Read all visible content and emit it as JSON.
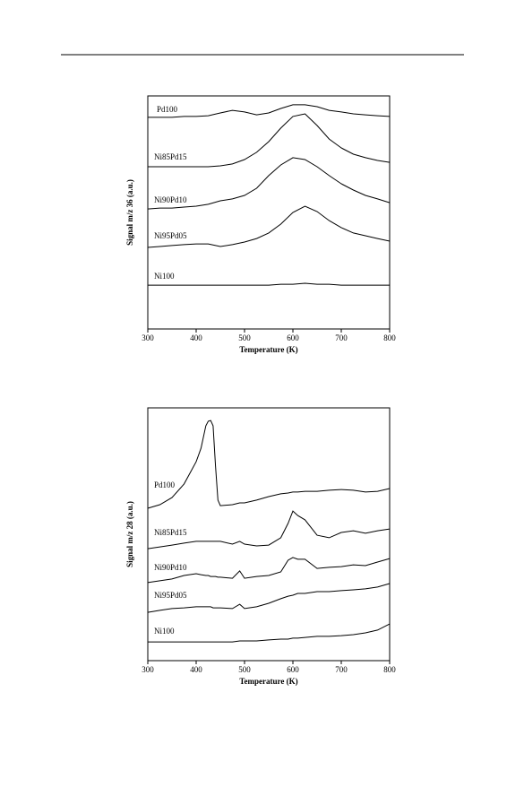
{
  "chart_data": [
    {
      "type": "line",
      "x_label": "Temperature (K)",
      "y_label": "Signal m/z 36 (a.u.)",
      "x": [
        300,
        325,
        350,
        375,
        400,
        425,
        450,
        475,
        500,
        525,
        550,
        575,
        600,
        625,
        650,
        675,
        700,
        725,
        750,
        775,
        800
      ],
      "xlim": [
        300,
        800
      ],
      "xticks": [
        300,
        400,
        500,
        600,
        700,
        800
      ],
      "ylim": [
        0,
        100
      ],
      "series": [
        {
          "name": "Pd100",
          "color": "#000000",
          "values": [
            90.8,
            90.8,
            90.8,
            91.2,
            91.2,
            91.5,
            92.7,
            93.8,
            93.1,
            91.9,
            92.7,
            94.6,
            96.2,
            96.2,
            95.4,
            93.8,
            93.1,
            92.3,
            91.9,
            91.5,
            91.2
          ]
        },
        {
          "name": "Ni85Pd15",
          "color": "#000000",
          "values": [
            69.6,
            69.6,
            69.6,
            69.6,
            69.6,
            69.6,
            70.0,
            70.8,
            72.7,
            75.8,
            80.4,
            86.2,
            91.2,
            92.3,
            87.3,
            81.5,
            77.7,
            75.0,
            73.5,
            72.3,
            71.5
          ]
        },
        {
          "name": "Ni90Pd10",
          "color": "#000000",
          "values": [
            51.5,
            51.9,
            51.9,
            52.3,
            52.7,
            53.5,
            55.0,
            55.8,
            57.3,
            60.4,
            65.8,
            70.4,
            73.5,
            72.7,
            69.6,
            65.8,
            62.3,
            59.6,
            57.3,
            55.8,
            54.2
          ]
        },
        {
          "name": "Ni95Pd05",
          "color": "#000000",
          "values": [
            35.0,
            35.4,
            35.8,
            36.2,
            36.5,
            36.5,
            35.4,
            36.2,
            37.3,
            38.8,
            41.2,
            45.0,
            50.0,
            52.7,
            50.4,
            46.5,
            43.5,
            41.2,
            40.0,
            38.8,
            37.7
          ]
        },
        {
          "name": "Ni100",
          "color": "#000000",
          "values": [
            18.8,
            18.8,
            18.8,
            18.8,
            18.8,
            18.8,
            18.8,
            18.8,
            18.8,
            18.8,
            18.8,
            19.2,
            19.2,
            19.6,
            19.2,
            19.2,
            18.8,
            18.8,
            18.8,
            18.8,
            18.8
          ]
        }
      ]
    },
    {
      "type": "line",
      "x_label": "Temperature (K)",
      "y_label": "Signal m/z 28 (a.u.)",
      "x": [
        300,
        325,
        350,
        375,
        400,
        410,
        420,
        425,
        430,
        435,
        440,
        445,
        450,
        475,
        490,
        500,
        525,
        550,
        575,
        590,
        600,
        610,
        625,
        650,
        675,
        700,
        725,
        750,
        775,
        800
      ],
      "xlim": [
        300,
        800
      ],
      "xticks": [
        300,
        400,
        500,
        600,
        700,
        800
      ],
      "ylim": [
        0,
        100
      ],
      "series": [
        {
          "name": "Pd100",
          "color": "#000000",
          "values": [
            60.3,
            61.7,
            64.5,
            69.9,
            78.7,
            84.0,
            92.9,
            94.7,
            95.0,
            92.9,
            77.0,
            63.5,
            61.3,
            61.7,
            62.4,
            62.4,
            63.5,
            64.9,
            66.0,
            66.3,
            66.7,
            66.7,
            67.0,
            67.0,
            67.4,
            67.7,
            67.4,
            66.7,
            67.0,
            68.1
          ]
        },
        {
          "name": "Ni85Pd15",
          "color": "#000000",
          "values": [
            44.3,
            45.0,
            45.7,
            46.5,
            47.2,
            47.2,
            47.2,
            47.2,
            47.2,
            47.2,
            47.2,
            47.2,
            47.2,
            46.1,
            47.2,
            46.1,
            45.4,
            45.7,
            48.6,
            54.3,
            59.2,
            57.4,
            55.7,
            49.6,
            48.6,
            50.7,
            51.4,
            50.4,
            51.4,
            52.1
          ]
        },
        {
          "name": "Ni90Pd10",
          "color": "#000000",
          "values": [
            30.9,
            31.6,
            32.3,
            33.7,
            34.4,
            34.0,
            33.7,
            33.7,
            33.3,
            33.3,
            33.3,
            33.0,
            33.0,
            32.6,
            35.5,
            32.6,
            33.3,
            33.7,
            35.1,
            39.7,
            40.8,
            40.1,
            40.1,
            36.5,
            36.9,
            37.2,
            37.9,
            37.6,
            39.0,
            40.4
          ]
        },
        {
          "name": "Ni95Pd05",
          "color": "#000000",
          "values": [
            19.1,
            19.9,
            20.6,
            20.9,
            21.3,
            21.3,
            21.3,
            21.3,
            21.3,
            20.9,
            20.9,
            20.9,
            20.9,
            20.6,
            22.3,
            20.6,
            21.3,
            22.7,
            24.5,
            25.5,
            25.9,
            26.6,
            26.6,
            27.3,
            27.3,
            27.7,
            28.0,
            28.4,
            29.1,
            30.5
          ]
        },
        {
          "name": "Ni100",
          "color": "#000000",
          "values": [
            7.4,
            7.4,
            7.4,
            7.4,
            7.4,
            7.4,
            7.4,
            7.4,
            7.4,
            7.4,
            7.4,
            7.4,
            7.4,
            7.4,
            7.8,
            7.8,
            7.8,
            8.2,
            8.5,
            8.5,
            8.9,
            8.9,
            9.2,
            9.6,
            9.6,
            9.9,
            10.3,
            11.0,
            12.1,
            14.5
          ]
        }
      ]
    }
  ]
}
